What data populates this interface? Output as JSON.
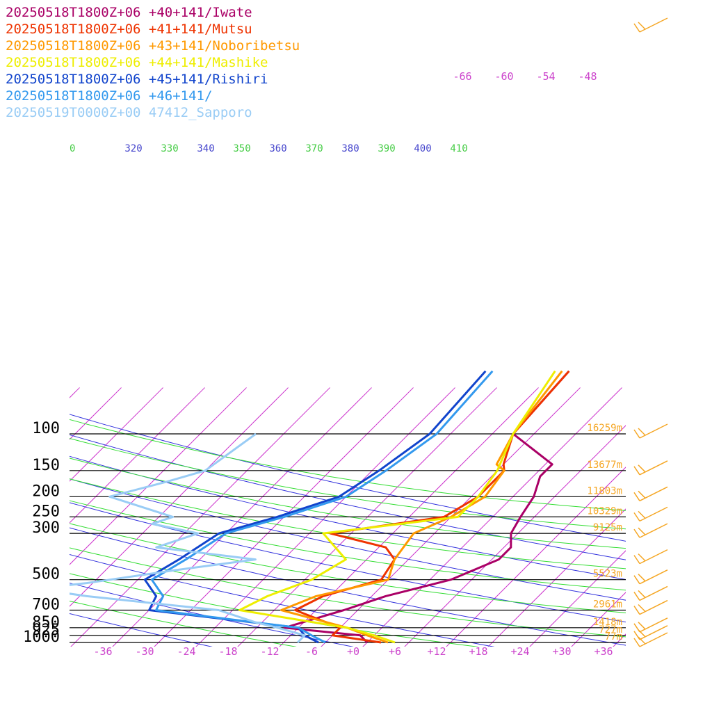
{
  "colors": {
    "isotherm": "#cc33cc",
    "dry_adiabat": "#3333dd",
    "moist_adiabat": "#33dd33",
    "isobar": "#000000",
    "height_label": "#f5a623",
    "barb": "#f5a623"
  },
  "chart_data": {
    "type": "line",
    "subtype": "skew-T log-P",
    "title": "",
    "xlabel": "",
    "ylabel": "",
    "x_ticks": [
      "-36",
      "-30",
      "-24",
      "-18",
      "-12",
      "-6",
      "+0",
      "+6",
      "+12",
      "+18",
      "+24",
      "+30",
      "+36"
    ],
    "x_tick_values": [
      -36,
      -30,
      -24,
      -18,
      -12,
      -6,
      0,
      6,
      12,
      18,
      24,
      30,
      36
    ],
    "pressure_levels": [
      {
        "label": "100",
        "p": 100,
        "height": "16259m"
      },
      {
        "label": "150",
        "p": 150,
        "height": "13677m"
      },
      {
        "label": "200",
        "p": 200,
        "height": "11803m"
      },
      {
        "label": "250",
        "p": 250,
        "height": "10329m"
      },
      {
        "label": "300",
        "p": 300,
        "height": "9125m"
      },
      {
        "label": "500",
        "p": 500,
        "height": "5523m"
      },
      {
        "label": "700",
        "p": 700,
        "height": "2961m"
      },
      {
        "label": "850",
        "p": 850,
        "height": "1418m"
      },
      {
        "label": "925",
        "p": 925,
        "height": "727m"
      },
      {
        "label": "1000",
        "p": 1000,
        "height": "77m"
      }
    ],
    "theta_labels": [
      "0",
      "320",
      "330",
      "340",
      "350",
      "360",
      "370",
      "380",
      "390",
      "400",
      "410"
    ],
    "upper_isotherm_labels": [
      "-66",
      "-60",
      "-54",
      "-48"
    ],
    "grid": true,
    "legend_position": "top-left",
    "series": [
      {
        "name": "20250518T1800Z+06 +40+141/Iwate",
        "color": "#aa0066",
        "points": [
          [
            1000,
            2
          ],
          [
            925,
            0
          ],
          [
            850,
            -12
          ],
          [
            700,
            -6
          ],
          [
            600,
            -2
          ],
          [
            500,
            5
          ],
          [
            400,
            9
          ],
          [
            350,
            9
          ],
          [
            300,
            7
          ],
          [
            250,
            6
          ],
          [
            200,
            5
          ],
          [
            160,
            3
          ],
          [
            140,
            3
          ],
          [
            100,
            -7
          ],
          [
            50,
            -8
          ]
        ]
      },
      {
        "name": "20250518T1800Z+06 +41+141/Mutsu",
        "color": "#ee3300",
        "points": [
          [
            1000,
            4
          ],
          [
            925,
            -4
          ],
          [
            850,
            -4
          ],
          [
            700,
            -13
          ],
          [
            600,
            -11
          ],
          [
            500,
            -5
          ],
          [
            400,
            -6
          ],
          [
            350,
            -9
          ],
          [
            300,
            -19
          ],
          [
            250,
            -5
          ],
          [
            200,
            -3
          ],
          [
            150,
            -3
          ],
          [
            140,
            -4
          ],
          [
            100,
            -7
          ],
          [
            50,
            -8
          ]
        ]
      },
      {
        "name": "20250518T1800Z+06 +43+141/Noboribetsu",
        "color": "#ff9900",
        "points": [
          [
            1000,
            5
          ],
          [
            925,
            1
          ],
          [
            850,
            -3
          ],
          [
            700,
            -15
          ],
          [
            600,
            -12
          ],
          [
            500,
            -4
          ],
          [
            400,
            -6
          ],
          [
            300,
            -7
          ],
          [
            250,
            -4
          ],
          [
            200,
            -2
          ],
          [
            150,
            -3
          ],
          [
            140,
            -5
          ],
          [
            100,
            -7
          ],
          [
            50,
            -9
          ]
        ]
      },
      {
        "name": "20250518T1800Z+06 +44+141/Mashike",
        "color": "#eeee00",
        "points": [
          [
            1000,
            6
          ],
          [
            925,
            2
          ],
          [
            850,
            -3
          ],
          [
            700,
            -21
          ],
          [
            600,
            -19
          ],
          [
            500,
            -15
          ],
          [
            400,
            -13
          ],
          [
            300,
            -20
          ],
          [
            250,
            -3
          ],
          [
            200,
            -3
          ],
          [
            150,
            -4
          ],
          [
            100,
            -7
          ],
          [
            50,
            -10
          ]
        ]
      },
      {
        "name": "20250518T1800Z+06 +45+141/Rishiri",
        "color": "#1144cc",
        "points": [
          [
            1000,
            -5
          ],
          [
            925,
            -8
          ],
          [
            850,
            -10
          ],
          [
            700,
            -34
          ],
          [
            600,
            -35
          ],
          [
            500,
            -39
          ],
          [
            400,
            -37
          ],
          [
            300,
            -35
          ],
          [
            250,
            -29
          ],
          [
            200,
            -23
          ],
          [
            150,
            -21
          ],
          [
            100,
            -19
          ],
          [
            50,
            -20
          ]
        ]
      },
      {
        "name": "20250518T1800Z+06 +46+141/",
        "color": "#3399ee",
        "points": [
          [
            1000,
            -4
          ],
          [
            925,
            -7
          ],
          [
            850,
            -10
          ],
          [
            700,
            -33
          ],
          [
            600,
            -34
          ],
          [
            500,
            -38
          ],
          [
            400,
            -36
          ],
          [
            300,
            -34
          ],
          [
            250,
            -28
          ],
          [
            200,
            -22
          ],
          [
            150,
            -20
          ],
          [
            100,
            -18
          ],
          [
            50,
            -19
          ]
        ]
      },
      {
        "name": "20250519T0000Z+00 47412_Sapporo",
        "color": "#99ccf5",
        "points": [
          [
            1000,
            -8
          ],
          [
            925,
            -8
          ],
          [
            850,
            -13
          ],
          [
            800,
            -17
          ],
          [
            700,
            -24
          ],
          [
            600,
            -45
          ],
          [
            560,
            -52
          ],
          [
            550,
            -53
          ],
          [
            520,
            -47
          ],
          [
            500,
            -44
          ],
          [
            450,
            -36
          ],
          [
            400,
            -26
          ],
          [
            350,
            -42
          ],
          [
            300,
            -38
          ],
          [
            270,
            -46
          ],
          [
            250,
            -44
          ],
          [
            200,
            -56
          ],
          [
            170,
            -50
          ],
          [
            150,
            -46
          ],
          [
            100,
            -44
          ]
        ]
      }
    ]
  }
}
